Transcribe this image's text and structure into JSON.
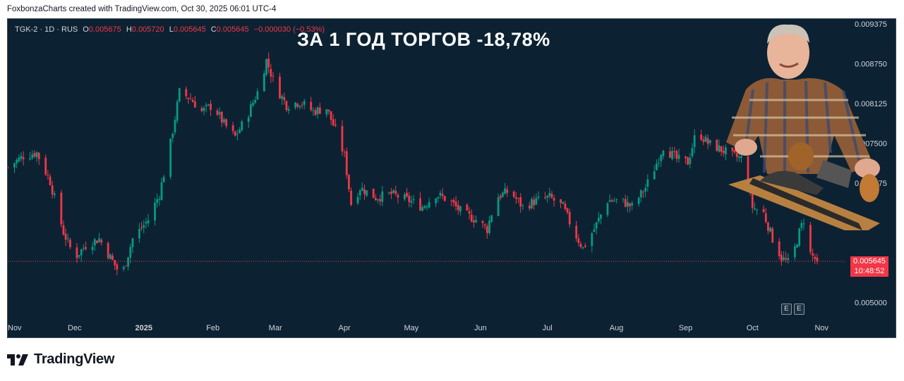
{
  "credit": "FoxbonzaCharts created with TradingView.com, Oct 30, 2025 06:01 UTC-4",
  "legend": {
    "symbol": "TGK-2 · 1D · RUS",
    "o_label": "O",
    "o": "0.005675",
    "h_label": "H",
    "h": "0.005720",
    "l_label": "L",
    "l": "0.005645",
    "c_label": "C",
    "c": "0.005645",
    "change": "−0.000030 (−0.53%)"
  },
  "headline": "ЗА 1 ГОД ТОРГОВ -18,78%",
  "last_price": "0.005645",
  "countdown": "10:48:52",
  "event_markers": [
    "E",
    "E"
  ],
  "brand": "TradingView",
  "colors": {
    "background": "#0c2233",
    "up": "#089981",
    "down": "#f23645",
    "axis_text": "#d1d4dc"
  },
  "chart_data": {
    "type": "candlestick",
    "symbol": "TGK-2",
    "interval": "1D",
    "ylim": [
      0.00475,
      0.00945
    ],
    "y_ticks": [
      "0.009375",
      "0.008750",
      "0.008125",
      "0.007500",
      "0.006875",
      "0.005000"
    ],
    "x_ticks": [
      "Nov",
      "Dec",
      "2025",
      "Feb",
      "Mar",
      "Apr",
      "May",
      "Jun",
      "Jul",
      "Aug",
      "Sep",
      "Oct",
      "Nov"
    ],
    "x_tick_dates": [
      "2024-11-01",
      "2024-12-01",
      "2025-01-01",
      "2025-02-01",
      "2025-03-01",
      "2025-04-01",
      "2025-05-01",
      "2025-06-01",
      "2025-07-01",
      "2025-08-01",
      "2025-09-01",
      "2025-10-01",
      "2025-11-01"
    ],
    "x_range": [
      "2024-11-01",
      "2025-11-12"
    ],
    "close_series": [
      [
        "2024-11-01",
        0.00712
      ],
      [
        "2024-11-08",
        0.0073
      ],
      [
        "2024-11-14",
        0.00735
      ],
      [
        "2024-11-20",
        0.0069
      ],
      [
        "2024-11-26",
        0.0061
      ],
      [
        "2024-12-01",
        0.0057
      ],
      [
        "2024-12-06",
        0.0059
      ],
      [
        "2024-12-12",
        0.006
      ],
      [
        "2024-12-18",
        0.00565
      ],
      [
        "2024-12-22",
        0.0054
      ],
      [
        "2024-12-27",
        0.006
      ],
      [
        "2025-01-03",
        0.0063
      ],
      [
        "2025-01-08",
        0.0067
      ],
      [
        "2025-01-13",
        0.0075
      ],
      [
        "2025-01-17",
        0.0083
      ],
      [
        "2025-01-22",
        0.0082
      ],
      [
        "2025-01-27",
        0.008
      ],
      [
        "2025-02-01",
        0.0081
      ],
      [
        "2025-02-06",
        0.0078
      ],
      [
        "2025-02-11",
        0.0076
      ],
      [
        "2025-02-16",
        0.0079
      ],
      [
        "2025-02-21",
        0.0083
      ],
      [
        "2025-02-25",
        0.0088
      ],
      [
        "2025-03-01",
        0.0084
      ],
      [
        "2025-03-06",
        0.0081
      ],
      [
        "2025-03-12",
        0.00815
      ],
      [
        "2025-03-18",
        0.008
      ],
      [
        "2025-03-24",
        0.00805
      ],
      [
        "2025-03-28",
        0.0077
      ],
      [
        "2025-04-01",
        0.0073
      ],
      [
        "2025-04-04",
        0.00655
      ],
      [
        "2025-04-08",
        0.0068
      ],
      [
        "2025-04-15",
        0.00665
      ],
      [
        "2025-04-22",
        0.0067
      ],
      [
        "2025-04-30",
        0.0066
      ],
      [
        "2025-05-06",
        0.0065
      ],
      [
        "2025-05-12",
        0.0067
      ],
      [
        "2025-05-18",
        0.0066
      ],
      [
        "2025-05-24",
        0.0064
      ],
      [
        "2025-05-30",
        0.0063
      ],
      [
        "2025-06-04",
        0.00615
      ],
      [
        "2025-06-08",
        0.00665
      ],
      [
        "2025-06-14",
        0.00675
      ],
      [
        "2025-06-20",
        0.0065
      ],
      [
        "2025-06-26",
        0.0066
      ],
      [
        "2025-07-02",
        0.00665
      ],
      [
        "2025-07-08",
        0.0065
      ],
      [
        "2025-07-13",
        0.0061
      ],
      [
        "2025-07-17",
        0.00585
      ],
      [
        "2025-07-22",
        0.00615
      ],
      [
        "2025-07-28",
        0.0066
      ],
      [
        "2025-08-03",
        0.0066
      ],
      [
        "2025-08-08",
        0.0065
      ],
      [
        "2025-08-14",
        0.0068
      ],
      [
        "2025-08-18",
        0.0071
      ],
      [
        "2025-08-22",
        0.00745
      ],
      [
        "2025-08-28",
        0.00725
      ],
      [
        "2025-09-02",
        0.0072
      ],
      [
        "2025-09-06",
        0.0077
      ],
      [
        "2025-09-11",
        0.0075
      ],
      [
        "2025-09-17",
        0.0074
      ],
      [
        "2025-09-22",
        0.0073
      ],
      [
        "2025-09-27",
        0.00725
      ],
      [
        "2025-10-01",
        0.0065
      ],
      [
        "2025-10-06",
        0.0064
      ],
      [
        "2025-10-10",
        0.006
      ],
      [
        "2025-10-14",
        0.0057
      ],
      [
        "2025-10-18",
        0.0056
      ],
      [
        "2025-10-22",
        0.0061
      ],
      [
        "2025-10-24",
        0.0063
      ],
      [
        "2025-10-26",
        0.0058
      ],
      [
        "2025-10-30",
        0.005645
      ]
    ]
  }
}
